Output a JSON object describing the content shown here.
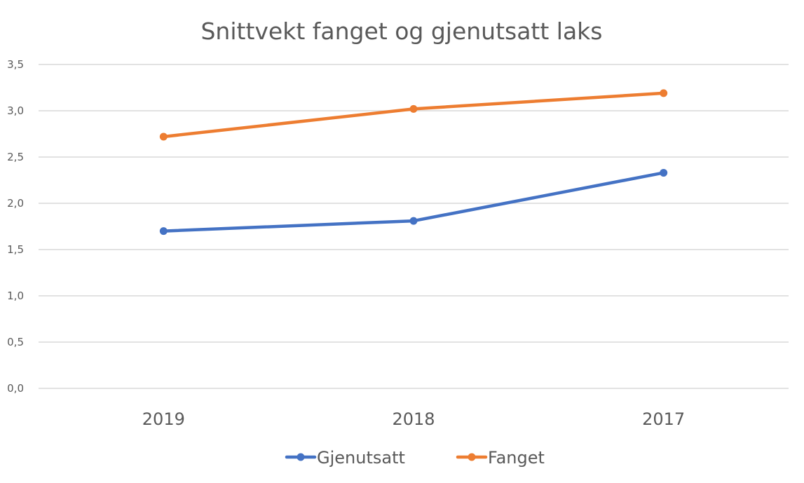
{
  "chart_data": {
    "type": "line",
    "title": "Snittvekt fanget og gjenutsatt laks",
    "xlabel": "",
    "ylabel": "",
    "categories": [
      "2019",
      "2018",
      "2017"
    ],
    "series": [
      {
        "name": "Gjenutsatt",
        "color": "#4472c4",
        "values": [
          1.7,
          1.81,
          2.33
        ]
      },
      {
        "name": "Fanget",
        "color": "#ed7d31",
        "values": [
          2.72,
          3.02,
          3.19
        ]
      }
    ],
    "ylim": [
      0,
      3.5
    ],
    "yticks": [
      "0,0",
      "0,5",
      "1,0",
      "1,5",
      "2,0",
      "2,5",
      "3,0",
      "3,5"
    ],
    "ytick_values": [
      0,
      0.5,
      1.0,
      1.5,
      2.0,
      2.5,
      3.0,
      3.5
    ],
    "grid": true,
    "legend_position": "bottom"
  }
}
